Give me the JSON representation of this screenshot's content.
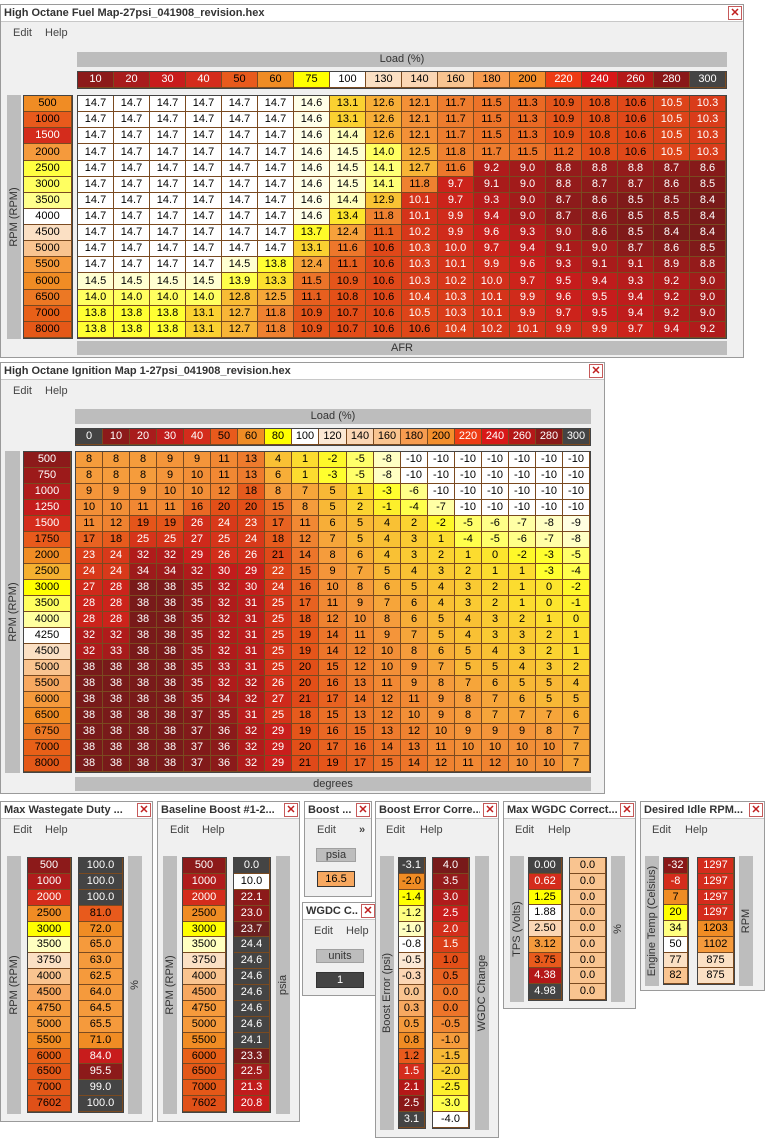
{
  "menu": {
    "edit": "Edit",
    "help": "Help"
  },
  "fuel": {
    "title": "High Octane Fuel Map-27psi_041908_revision.hex",
    "x_label": "Load (%)",
    "y_label": "RPM (RPM)",
    "z_label": "AFR",
    "loads": [
      "10",
      "20",
      "30",
      "40",
      "50",
      "60",
      "75",
      "100",
      "130",
      "140",
      "160",
      "180",
      "200",
      "220",
      "240",
      "260",
      "280",
      "300"
    ],
    "load_colors": [
      "#8c1a1a",
      "#a81c1c",
      "#c81c1c",
      "#d42c1c",
      "#e85a1c",
      "#f08c24",
      "#ffff00",
      "#ffffff",
      "#fbe0c4",
      "#fbd6b4",
      "#f9c490",
      "#f79c50",
      "#f38e2c",
      "#ee3c14",
      "#d81818",
      "#b41818",
      "#8a1818",
      "#444444"
    ],
    "rpms": [
      "500",
      "1000",
      "1500",
      "2000",
      "2500",
      "3000",
      "3500",
      "4000",
      "4500",
      "5000",
      "5500",
      "6000",
      "6500",
      "7000",
      "8000"
    ],
    "rpm_colors": [
      "#f08c24",
      "#e85a1c",
      "#d42c1c",
      "#f59a3c",
      "#ffff40",
      "#ffff60",
      "#ffff8c",
      "#ffffff",
      "#fbe0c4",
      "#f9c490",
      "#f59a3c",
      "#f08c24",
      "#ec7824",
      "#e86018",
      "#e45818"
    ],
    "values": [
      [
        "14.7",
        "14.7",
        "14.7",
        "14.7",
        "14.7",
        "14.7",
        "14.6",
        "13.1",
        "12.6",
        "12.1",
        "11.7",
        "11.5",
        "11.3",
        "10.9",
        "10.8",
        "10.6",
        "10.5",
        "10.3"
      ],
      [
        "14.7",
        "14.7",
        "14.7",
        "14.7",
        "14.7",
        "14.7",
        "14.6",
        "13.1",
        "12.6",
        "12.1",
        "11.7",
        "11.5",
        "11.3",
        "10.9",
        "10.8",
        "10.6",
        "10.5",
        "10.3"
      ],
      [
        "14.7",
        "14.7",
        "14.7",
        "14.7",
        "14.7",
        "14.7",
        "14.6",
        "14.4",
        "12.6",
        "12.1",
        "11.7",
        "11.5",
        "11.3",
        "10.9",
        "10.8",
        "10.6",
        "10.5",
        "10.3"
      ],
      [
        "14.7",
        "14.7",
        "14.7",
        "14.7",
        "14.7",
        "14.7",
        "14.6",
        "14.5",
        "14.0",
        "12.5",
        "11.8",
        "11.7",
        "11.5",
        "11.2",
        "10.8",
        "10.6",
        "10.5",
        "10.3"
      ],
      [
        "14.7",
        "14.7",
        "14.7",
        "14.7",
        "14.7",
        "14.7",
        "14.6",
        "14.5",
        "14.1",
        "12.7",
        "11.6",
        "9.2",
        "9.0",
        "8.8",
        "8.8",
        "8.8",
        "8.7",
        "8.6"
      ],
      [
        "14.7",
        "14.7",
        "14.7",
        "14.7",
        "14.7",
        "14.7",
        "14.6",
        "14.5",
        "14.1",
        "11.8",
        "9.7",
        "9.1",
        "9.0",
        "8.8",
        "8.7",
        "8.7",
        "8.6",
        "8.5"
      ],
      [
        "14.7",
        "14.7",
        "14.7",
        "14.7",
        "14.7",
        "14.7",
        "14.6",
        "14.4",
        "12.9",
        "10.1",
        "9.7",
        "9.3",
        "9.0",
        "8.7",
        "8.6",
        "8.5",
        "8.5",
        "8.4"
      ],
      [
        "14.7",
        "14.7",
        "14.7",
        "14.7",
        "14.7",
        "14.7",
        "14.6",
        "13.4",
        "11.8",
        "10.1",
        "9.9",
        "9.4",
        "9.0",
        "8.7",
        "8.6",
        "8.5",
        "8.5",
        "8.4"
      ],
      [
        "14.7",
        "14.7",
        "14.7",
        "14.7",
        "14.7",
        "14.7",
        "13.7",
        "12.4",
        "11.1",
        "10.2",
        "9.9",
        "9.6",
        "9.3",
        "9.0",
        "8.6",
        "8.5",
        "8.4",
        "8.4"
      ],
      [
        "14.7",
        "14.7",
        "14.7",
        "14.7",
        "14.7",
        "14.7",
        "13.1",
        "11.6",
        "10.6",
        "10.3",
        "10.0",
        "9.7",
        "9.4",
        "9.1",
        "9.0",
        "8.7",
        "8.6",
        "8.5"
      ],
      [
        "14.7",
        "14.7",
        "14.7",
        "14.7",
        "14.5",
        "13.8",
        "12.4",
        "11.1",
        "10.6",
        "10.3",
        "10.1",
        "9.9",
        "9.6",
        "9.3",
        "9.1",
        "9.1",
        "8.9",
        "8.8"
      ],
      [
        "14.5",
        "14.5",
        "14.5",
        "14.5",
        "13.9",
        "13.3",
        "11.5",
        "10.9",
        "10.6",
        "10.3",
        "10.2",
        "10.0",
        "9.7",
        "9.5",
        "9.4",
        "9.3",
        "9.2",
        "9.0"
      ],
      [
        "14.0",
        "14.0",
        "14.0",
        "14.0",
        "12.8",
        "12.5",
        "11.1",
        "10.8",
        "10.6",
        "10.4",
        "10.3",
        "10.1",
        "9.9",
        "9.6",
        "9.5",
        "9.4",
        "9.2",
        "9.0"
      ],
      [
        "13.8",
        "13.8",
        "13.8",
        "13.1",
        "12.7",
        "11.8",
        "10.9",
        "10.7",
        "10.6",
        "10.5",
        "10.3",
        "10.1",
        "9.9",
        "9.7",
        "9.5",
        "9.4",
        "9.2",
        "9.0"
      ],
      [
        "13.8",
        "13.8",
        "13.8",
        "13.1",
        "12.7",
        "11.8",
        "10.9",
        "10.7",
        "10.6",
        "10.6",
        "10.4",
        "10.2",
        "10.1",
        "9.9",
        "9.9",
        "9.7",
        "9.4",
        "9.2"
      ]
    ]
  },
  "ign": {
    "title": "High Octane Ignition Map 1-27psi_041908_revision.hex",
    "x_label": "Load (%)",
    "y_label": "RPM (RPM)",
    "z_label": "degrees",
    "loads": [
      "0",
      "10",
      "20",
      "30",
      "40",
      "50",
      "60",
      "80",
      "100",
      "120",
      "140",
      "160",
      "180",
      "200",
      "220",
      "240",
      "260",
      "280",
      "300"
    ],
    "load_colors": [
      "#444444",
      "#8c1a1a",
      "#a81c1c",
      "#c01c1c",
      "#d42c1c",
      "#e85a1c",
      "#f08c24",
      "#ffff00",
      "#ffffff",
      "#fbe8d4",
      "#fbd6b4",
      "#f9c490",
      "#f79c50",
      "#f38e2c",
      "#ee3c14",
      "#d81818",
      "#b41818",
      "#8a1818",
      "#444444"
    ],
    "rpms": [
      "500",
      "750",
      "1000",
      "1250",
      "1500",
      "1750",
      "2000",
      "2500",
      "3000",
      "3500",
      "4000",
      "4250",
      "4500",
      "5000",
      "5500",
      "6000",
      "6500",
      "6750",
      "7000",
      "8000"
    ],
    "rpm_colors": [
      "#8c1a1a",
      "#9c1a1a",
      "#b01c1c",
      "#c41c1c",
      "#d42c1c",
      "#e85a1c",
      "#f08c24",
      "#f5b030",
      "#ffff00",
      "#ffff60",
      "#ffffa0",
      "#ffffff",
      "#fbe0c4",
      "#f9c490",
      "#f7a860",
      "#f59a3c",
      "#f08c24",
      "#ec7824",
      "#e86018",
      "#e45818"
    ],
    "values": [
      [
        "8",
        "8",
        "8",
        "9",
        "9",
        "11",
        "13",
        "4",
        "1",
        "-2",
        "-5",
        "-8",
        "-10",
        "-10",
        "-10",
        "-10",
        "-10",
        "-10",
        "-10"
      ],
      [
        "8",
        "8",
        "8",
        "9",
        "10",
        "11",
        "13",
        "6",
        "1",
        "-3",
        "-5",
        "-8",
        "-10",
        "-10",
        "-10",
        "-10",
        "-10",
        "-10",
        "-10"
      ],
      [
        "9",
        "9",
        "9",
        "10",
        "10",
        "12",
        "18",
        "8",
        "7",
        "5",
        "1",
        "-3",
        "-6",
        "-10",
        "-10",
        "-10",
        "-10",
        "-10",
        "-10"
      ],
      [
        "10",
        "10",
        "11",
        "11",
        "16",
        "20",
        "20",
        "15",
        "8",
        "5",
        "2",
        "-1",
        "-4",
        "-7",
        "-10",
        "-10",
        "-10",
        "-10",
        "-10"
      ],
      [
        "11",
        "12",
        "19",
        "19",
        "26",
        "24",
        "23",
        "17",
        "11",
        "6",
        "5",
        "4",
        "2",
        "-2",
        "-5",
        "-6",
        "-7",
        "-8",
        "-9"
      ],
      [
        "17",
        "18",
        "25",
        "25",
        "27",
        "25",
        "24",
        "18",
        "12",
        "7",
        "5",
        "4",
        "3",
        "1",
        "-4",
        "-5",
        "-6",
        "-7",
        "-8"
      ],
      [
        "23",
        "24",
        "32",
        "32",
        "29",
        "26",
        "26",
        "21",
        "14",
        "8",
        "6",
        "4",
        "3",
        "2",
        "1",
        "0",
        "-2",
        "-3",
        "-5"
      ],
      [
        "24",
        "24",
        "34",
        "34",
        "32",
        "30",
        "29",
        "22",
        "15",
        "9",
        "7",
        "5",
        "4",
        "3",
        "2",
        "1",
        "1",
        "-3",
        "-4"
      ],
      [
        "27",
        "28",
        "38",
        "38",
        "35",
        "32",
        "30",
        "24",
        "16",
        "10",
        "8",
        "6",
        "5",
        "4",
        "3",
        "2",
        "1",
        "0",
        "-2"
      ],
      [
        "28",
        "28",
        "38",
        "38",
        "35",
        "32",
        "31",
        "25",
        "17",
        "11",
        "9",
        "7",
        "6",
        "4",
        "3",
        "2",
        "1",
        "0",
        "-1"
      ],
      [
        "28",
        "28",
        "38",
        "38",
        "35",
        "32",
        "31",
        "25",
        "18",
        "12",
        "10",
        "8",
        "6",
        "5",
        "4",
        "3",
        "2",
        "1",
        "0"
      ],
      [
        "32",
        "32",
        "38",
        "38",
        "35",
        "32",
        "31",
        "25",
        "19",
        "14",
        "11",
        "9",
        "7",
        "5",
        "4",
        "3",
        "3",
        "2",
        "1"
      ],
      [
        "32",
        "33",
        "38",
        "38",
        "35",
        "32",
        "31",
        "25",
        "19",
        "14",
        "12",
        "10",
        "8",
        "6",
        "5",
        "4",
        "3",
        "2",
        "1"
      ],
      [
        "38",
        "38",
        "38",
        "38",
        "35",
        "33",
        "31",
        "25",
        "20",
        "15",
        "12",
        "10",
        "9",
        "7",
        "5",
        "5",
        "4",
        "3",
        "2"
      ],
      [
        "38",
        "38",
        "38",
        "38",
        "35",
        "32",
        "32",
        "26",
        "20",
        "16",
        "13",
        "11",
        "9",
        "8",
        "7",
        "6",
        "5",
        "5",
        "4"
      ],
      [
        "38",
        "38",
        "38",
        "38",
        "35",
        "34",
        "32",
        "27",
        "21",
        "17",
        "14",
        "12",
        "11",
        "9",
        "8",
        "7",
        "6",
        "5",
        "5"
      ],
      [
        "38",
        "38",
        "38",
        "38",
        "37",
        "35",
        "31",
        "25",
        "18",
        "15",
        "13",
        "12",
        "10",
        "9",
        "8",
        "7",
        "7",
        "7",
        "6"
      ],
      [
        "38",
        "38",
        "38",
        "38",
        "37",
        "36",
        "32",
        "29",
        "19",
        "16",
        "15",
        "13",
        "12",
        "10",
        "9",
        "9",
        "9",
        "8",
        "7"
      ],
      [
        "38",
        "38",
        "38",
        "38",
        "37",
        "36",
        "32",
        "29",
        "20",
        "17",
        "16",
        "14",
        "13",
        "11",
        "10",
        "10",
        "10",
        "10",
        "7"
      ],
      [
        "38",
        "38",
        "38",
        "38",
        "37",
        "36",
        "32",
        "29",
        "21",
        "19",
        "17",
        "15",
        "14",
        "12",
        "11",
        "12",
        "10",
        "10",
        "7"
      ]
    ]
  },
  "wg": {
    "title": "Max Wastegate Duty ...",
    "y_label": "RPM (RPM)",
    "z_label": "%",
    "rpms": [
      "500",
      "1000",
      "2000",
      "2500",
      "3000",
      "3500",
      "3750",
      "4000",
      "4500",
      "4750",
      "5000",
      "5500",
      "6000",
      "6500",
      "7000",
      "7602"
    ],
    "rpm_colors": [
      "#8c1a1a",
      "#b01c1c",
      "#d42c1c",
      "#f08c24",
      "#ffff00",
      "#ffffc0",
      "#fbe0c4",
      "#f9c490",
      "#f7a860",
      "#f59a3c",
      "#f59a3c",
      "#f08c24",
      "#e86018",
      "#e45818",
      "#e45818",
      "#e05018"
    ],
    "values": [
      "100.0",
      "100.0",
      "100.0",
      "81.0",
      "72.0",
      "65.0",
      "63.0",
      "62.5",
      "64.0",
      "64.5",
      "65.5",
      "71.0",
      "84.0",
      "95.5",
      "99.0",
      "100.0"
    ],
    "value_colors": [
      "#444444",
      "#444444",
      "#444444",
      "#e85a1c",
      "#f08c24",
      "#f59a3c",
      "#f59a3c",
      "#f59a3c",
      "#f59a3c",
      "#f59a3c",
      "#f59a3c",
      "#f08c24",
      "#c81c1c",
      "#8c1a1a",
      "#444444",
      "#444444"
    ]
  },
  "bb": {
    "title": "Baseline Boost #1-2...",
    "y_label": "RPM (RPM)",
    "z_label": "psia",
    "rpms": [
      "500",
      "1000",
      "2000",
      "2500",
      "3000",
      "3500",
      "3750",
      "4000",
      "4500",
      "4750",
      "5000",
      "5500",
      "6000",
      "6500",
      "7000",
      "7602"
    ],
    "rpm_colors": [
      "#8c1a1a",
      "#b01c1c",
      "#d42c1c",
      "#f08c24",
      "#ffff00",
      "#ffffc0",
      "#fbe0c4",
      "#f9c490",
      "#f7a860",
      "#f59a3c",
      "#f59a3c",
      "#f08c24",
      "#e86018",
      "#e45818",
      "#e45818",
      "#e05018"
    ],
    "values": [
      "0.0",
      "10.0",
      "22.1",
      "23.0",
      "23.7",
      "24.4",
      "24.6",
      "24.6",
      "24.6",
      "24.6",
      "24.6",
      "24.1",
      "23.3",
      "22.5",
      "21.3",
      "20.8"
    ],
    "value_colors": [
      "#444444",
      "#ffffff",
      "#8c1a1a",
      "#8c1a1a",
      "#6c2020",
      "#444444",
      "#444444",
      "#444444",
      "#444444",
      "#444444",
      "#444444",
      "#444444",
      "#7a1c1c",
      "#a01c1c",
      "#c01c1c",
      "#c81c1c"
    ]
  },
  "boost": {
    "title": "Boost ...",
    "unit": "psia",
    "value": "16.5",
    "chevron": "»"
  },
  "wgdc": {
    "title": "WGDC C...",
    "unit": "units",
    "value": "1"
  },
  "bec": {
    "title": "Boost Error Corre...",
    "y_label": "Boost Error (psi)",
    "z_label": "WGDC Change",
    "rows": [
      "-3.1",
      "-2.0",
      "-1.4",
      "-1.2",
      "-1.0",
      "-0.8",
      "-0.5",
      "-0.3",
      "0.0",
      "0.3",
      "0.5",
      "0.8",
      "1.2",
      "1.5",
      "2.1",
      "2.5",
      "3.1"
    ],
    "row_colors": [
      "#444444",
      "#f08c24",
      "#ffff00",
      "#ffff80",
      "#ffffc0",
      "#ffffff",
      "#fbe8d4",
      "#fbd6b4",
      "#f9c490",
      "#f7a860",
      "#f59a3c",
      "#f08c24",
      "#e85a1c",
      "#d42c1c",
      "#b41818",
      "#8a1818",
      "#444444"
    ],
    "values": [
      "4.0",
      "3.5",
      "3.0",
      "2.5",
      "2.0",
      "1.5",
      "1.0",
      "0.5",
      "0.0",
      "0.0",
      "-0.5",
      "-1.0",
      "-1.5",
      "-2.0",
      "-2.5",
      "-3.0",
      "-4.0"
    ]
  },
  "mwc": {
    "title": "Max WGDC Correct...",
    "y_label": "TPS (Volts)",
    "z_label": "%",
    "rows": [
      "0.00",
      "0.62",
      "1.25",
      "1.88",
      "2.50",
      "3.12",
      "3.75",
      "4.38",
      "4.98"
    ],
    "row_colors": [
      "#444444",
      "#d42c1c",
      "#ffff00",
      "#ffffff",
      "#fbd6b4",
      "#f59a3c",
      "#e85a1c",
      "#b41818",
      "#444444"
    ],
    "values": [
      "0.0",
      "0.0",
      "0.0",
      "0.0",
      "0.0",
      "0.0",
      "0.0",
      "0.0",
      "0.0"
    ]
  },
  "idle": {
    "title": "Desired Idle RPM...",
    "y_label": "Engine Temp (Celsius)",
    "z_label": "RPM",
    "rows": [
      "-32",
      "-8",
      "7",
      "20",
      "34",
      "50",
      "77",
      "82"
    ],
    "row_colors": [
      "#8a1818",
      "#d42c1c",
      "#f08c24",
      "#ffff00",
      "#ffff80",
      "#ffffff",
      "#fbe0c4",
      "#f9c490"
    ],
    "values": [
      "1297",
      "1297",
      "1297",
      "1297",
      "1203",
      "1102",
      "875",
      "875"
    ],
    "value_colors": [
      "#d42c1c",
      "#d42c1c",
      "#d42c1c",
      "#d42c1c",
      "#f08c24",
      "#f59a3c",
      "#fbe0c4",
      "#fbe0c4"
    ]
  }
}
